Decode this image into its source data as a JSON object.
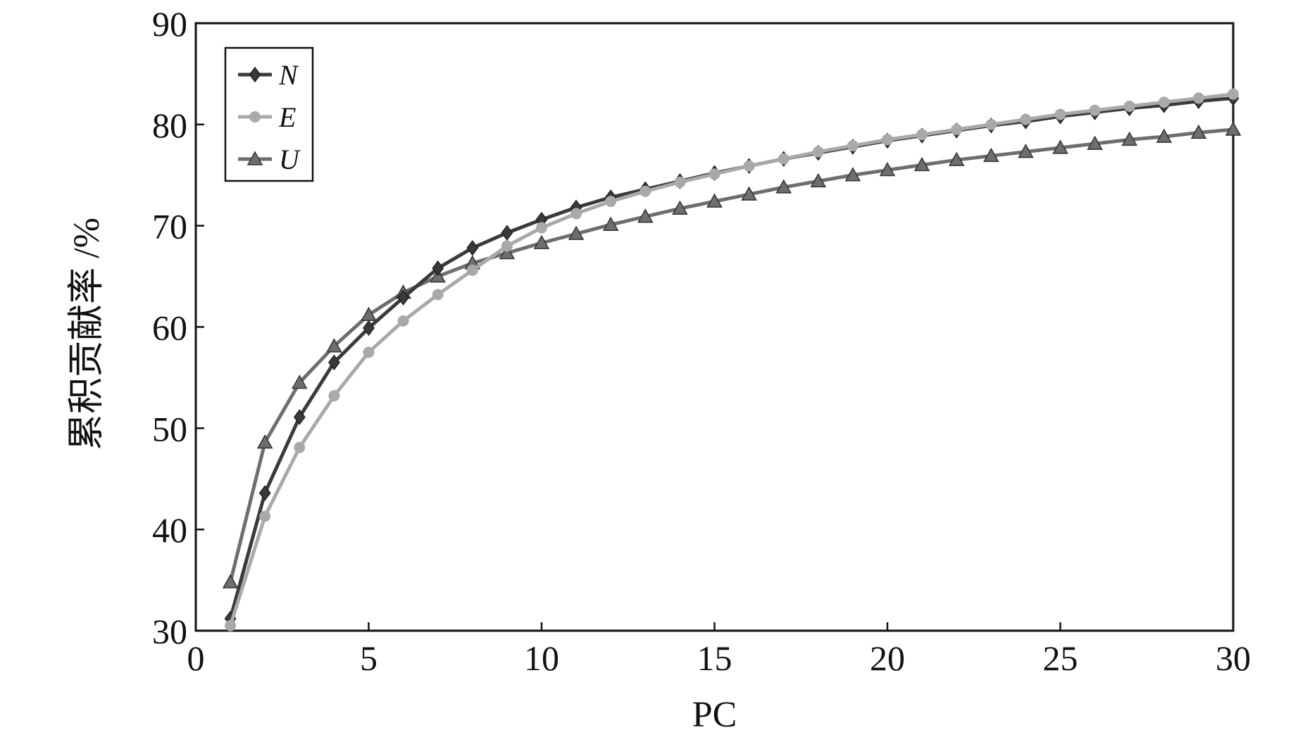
{
  "chart_data": {
    "type": "line",
    "xlabel": "PC",
    "ylabel": "累积贡献率 /%",
    "xlim": [
      0,
      30
    ],
    "ylim": [
      30,
      90
    ],
    "xticks": [
      0,
      5,
      10,
      15,
      20,
      25,
      30
    ],
    "yticks": [
      30,
      40,
      50,
      60,
      70,
      80,
      90
    ],
    "grid": false,
    "legend_position": "top-left",
    "x": [
      1,
      2,
      3,
      4,
      5,
      6,
      7,
      8,
      9,
      10,
      11,
      12,
      13,
      14,
      15,
      16,
      17,
      18,
      19,
      20,
      21,
      22,
      23,
      24,
      25,
      26,
      27,
      28,
      29,
      30
    ],
    "series": [
      {
        "name": "N",
        "marker": "diamond",
        "color": "#3a3a3a",
        "values": [
          31.2,
          43.6,
          51.1,
          56.5,
          59.9,
          62.9,
          65.8,
          67.8,
          69.3,
          70.6,
          71.8,
          72.8,
          73.6,
          74.4,
          75.2,
          75.9,
          76.6,
          77.2,
          77.8,
          78.4,
          78.9,
          79.4,
          79.9,
          80.3,
          80.8,
          81.2,
          81.6,
          81.9,
          82.3,
          82.6
        ],
        "label_x": [
          270,
          315,
          357,
          398,
          440,
          481,
          522,
          563,
          605,
          646,
          687,
          729,
          770,
          811,
          853,
          894,
          936,
          977,
          1018,
          1060,
          1101,
          1142,
          1184,
          1225,
          1266,
          1308,
          1349,
          1390,
          1432,
          1473
        ]
      },
      {
        "name": "E",
        "marker": "circle",
        "color": "#a9a9a9",
        "values": [
          30.5,
          41.3,
          48.1,
          53.2,
          57.5,
          60.6,
          63.2,
          65.6,
          68.0,
          69.8,
          71.2,
          72.4,
          73.4,
          74.3,
          75.1,
          75.9,
          76.6,
          77.3,
          77.9,
          78.5,
          79.0,
          79.5,
          80.0,
          80.5,
          81.0,
          81.4,
          81.8,
          82.2,
          82.6,
          83.0
        ]
      },
      {
        "name": "U",
        "marker": "triangle",
        "color": "#6e6e6e",
        "values": [
          34.8,
          48.6,
          54.5,
          58.1,
          61.2,
          63.4,
          65.0,
          66.3,
          67.3,
          68.3,
          69.2,
          70.1,
          70.9,
          71.7,
          72.4,
          73.1,
          73.8,
          74.4,
          75.0,
          75.5,
          76.0,
          76.5,
          76.9,
          77.3,
          77.7,
          78.1,
          78.5,
          78.8,
          79.2,
          79.5
        ]
      }
    ]
  }
}
